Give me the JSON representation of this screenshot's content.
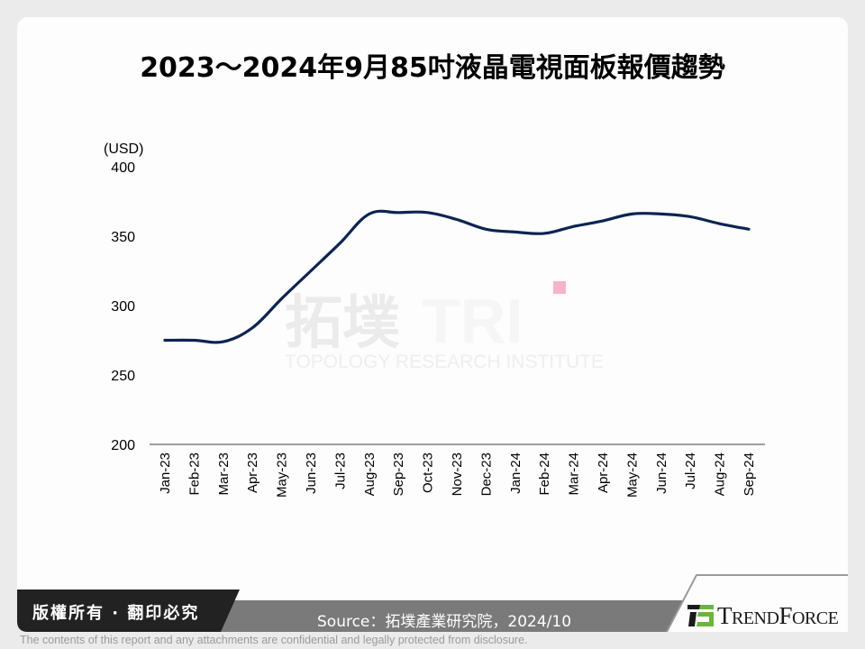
{
  "title": "2023～2024年9月85吋液晶電視面板報價趨勢",
  "chart_data": {
    "type": "line",
    "title": "2023～2024年9月85吋液晶電視面板報價趨勢",
    "xlabel": "",
    "ylabel": "(USD)",
    "ylim": [
      200,
      400
    ],
    "yticks": [
      200,
      250,
      300,
      350,
      400
    ],
    "grid": false,
    "legend": null,
    "categories": [
      "Jan-23",
      "Feb-23",
      "Mar-23",
      "Apr-23",
      "May-23",
      "Jun-23",
      "Jul-23",
      "Aug-23",
      "Sep-23",
      "Oct-23",
      "Nov-23",
      "Dec-23",
      "Jan-24",
      "Feb-24",
      "Mar-24",
      "Apr-24",
      "May-24",
      "Jun-24",
      "Jul-24",
      "Aug-24",
      "Sep-24"
    ],
    "series": [
      {
        "name": "85吋液晶電視面板報價",
        "color": "#0d2452",
        "values": [
          275,
          275,
          274,
          284,
          305,
          325,
          345,
          366,
          367,
          367,
          362,
          355,
          353,
          352,
          357,
          361,
          366,
          366,
          364,
          359,
          355
        ]
      }
    ]
  },
  "axis": {
    "unit_label": "(USD)",
    "y_labels": [
      "400",
      "350",
      "300",
      "250",
      "200"
    ]
  },
  "watermark": {
    "cn": "拓墣",
    "en": "TOPOLOGY RESEARCH INSTITUTE",
    "accent_color": "#f7b3c8"
  },
  "footer": {
    "copyright": "版權所有 · 翻印必究",
    "source": "Source：拓墣產業研究院，2024/10",
    "brand": "TRENDFORCE",
    "disclaimer": "The contents of this report and any attachments are confidential and legally protected from disclosure.",
    "colors": {
      "dark_band": "#222222",
      "gray_band": "#7a7a7a",
      "logo_green": "#6db33f"
    }
  }
}
